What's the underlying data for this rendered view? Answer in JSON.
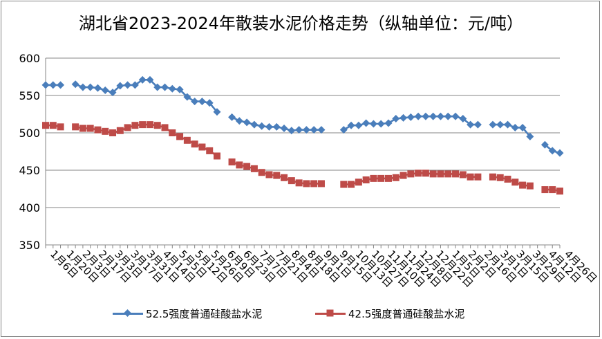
{
  "chart_data": {
    "type": "line",
    "title": "湖北省2023-2024年散装水泥价格走势（纵轴单位：元/吨）",
    "xlabel": "",
    "ylabel": "",
    "ylim": [
      350,
      600
    ],
    "yticks": [
      350,
      400,
      450,
      500,
      550,
      600
    ],
    "grid": "horizontal",
    "legend": "bottom",
    "x_tick_labels": [
      "1月6日",
      "1月20日",
      "2月3日",
      "2月17日",
      "3月3日",
      "3月17日",
      "3月31日",
      "4月14日",
      "5月5日",
      "5月12日",
      "5月26日",
      "6月9日",
      "6月23日",
      "7月7日",
      "7月21日",
      "8月4日",
      "8月18日",
      "9月1日",
      "9月15日",
      "10月13日",
      "10月27日",
      "11月10日",
      "11月24日",
      "12月8日",
      "12月22日",
      "1月5日",
      "2月2日",
      "2月16日",
      "3月1日",
      "3月15日",
      "3月29日",
      "4月12日",
      "4月26日"
    ],
    "series": [
      {
        "name": "52.5强度普通硅酸盐水泥",
        "color": "#4a7ebb",
        "marker": "diamond",
        "points": [
          [
            0,
            564
          ],
          [
            1,
            564
          ],
          [
            2,
            564
          ],
          [
            4,
            565
          ],
          [
            5,
            561
          ],
          [
            6,
            561
          ],
          [
            7,
            560
          ],
          [
            8,
            557
          ],
          [
            9,
            554
          ],
          [
            10,
            563
          ],
          [
            11,
            564
          ],
          [
            12,
            564
          ],
          [
            13,
            571
          ],
          [
            14,
            571
          ],
          [
            15,
            561
          ],
          [
            16,
            561
          ],
          [
            17,
            559
          ],
          [
            18,
            558
          ],
          [
            19,
            548
          ],
          [
            20,
            542
          ],
          [
            21,
            542
          ],
          [
            22,
            540
          ],
          [
            23,
            528
          ],
          [
            25,
            521
          ],
          [
            26,
            516
          ],
          [
            27,
            514
          ],
          [
            28,
            511
          ],
          [
            29,
            509
          ],
          [
            30,
            508
          ],
          [
            31,
            508
          ],
          [
            32,
            506
          ],
          [
            33,
            503
          ],
          [
            34,
            504
          ],
          [
            35,
            504
          ],
          [
            36,
            504
          ],
          [
            37,
            504
          ],
          [
            40,
            504
          ],
          [
            41,
            510
          ],
          [
            42,
            510
          ],
          [
            43,
            513
          ],
          [
            44,
            512
          ],
          [
            45,
            512
          ],
          [
            46,
            513
          ],
          [
            47,
            519
          ],
          [
            48,
            520
          ],
          [
            49,
            521
          ],
          [
            50,
            522
          ],
          [
            51,
            522
          ],
          [
            52,
            522
          ],
          [
            53,
            522
          ],
          [
            54,
            522
          ],
          [
            55,
            522
          ],
          [
            56,
            519
          ],
          [
            57,
            511
          ],
          [
            58,
            511
          ],
          [
            60,
            511
          ],
          [
            61,
            511
          ],
          [
            62,
            511
          ],
          [
            63,
            507
          ],
          [
            64,
            507
          ],
          [
            65,
            495
          ],
          [
            67,
            484
          ],
          [
            68,
            476
          ],
          [
            69,
            473
          ]
        ]
      },
      {
        "name": "42.5强度普通硅酸盐水泥",
        "color": "#be4b48",
        "marker": "square",
        "points": [
          [
            0,
            510
          ],
          [
            1,
            510
          ],
          [
            2,
            508
          ],
          [
            4,
            508
          ],
          [
            5,
            506
          ],
          [
            6,
            506
          ],
          [
            7,
            504
          ],
          [
            8,
            502
          ],
          [
            9,
            500
          ],
          [
            10,
            503
          ],
          [
            11,
            507
          ],
          [
            12,
            510
          ],
          [
            13,
            511
          ],
          [
            14,
            511
          ],
          [
            15,
            510
          ],
          [
            16,
            507
          ],
          [
            17,
            500
          ],
          [
            18,
            495
          ],
          [
            19,
            490
          ],
          [
            20,
            485
          ],
          [
            21,
            481
          ],
          [
            22,
            476
          ],
          [
            23,
            469
          ],
          [
            25,
            461
          ],
          [
            26,
            457
          ],
          [
            27,
            455
          ],
          [
            28,
            452
          ],
          [
            29,
            447
          ],
          [
            30,
            444
          ],
          [
            31,
            443
          ],
          [
            32,
            440
          ],
          [
            33,
            436
          ],
          [
            34,
            433
          ],
          [
            35,
            432
          ],
          [
            36,
            432
          ],
          [
            37,
            432
          ],
          [
            40,
            431
          ],
          [
            41,
            431
          ],
          [
            42,
            434
          ],
          [
            43,
            437
          ],
          [
            44,
            439
          ],
          [
            45,
            439
          ],
          [
            46,
            439
          ],
          [
            47,
            440
          ],
          [
            48,
            443
          ],
          [
            49,
            445
          ],
          [
            50,
            446
          ],
          [
            51,
            446
          ],
          [
            52,
            445
          ],
          [
            53,
            445
          ],
          [
            54,
            445
          ],
          [
            55,
            445
          ],
          [
            56,
            444
          ],
          [
            57,
            441
          ],
          [
            58,
            441
          ],
          [
            60,
            441
          ],
          [
            61,
            440
          ],
          [
            62,
            438
          ],
          [
            63,
            434
          ],
          [
            64,
            430
          ],
          [
            65,
            429
          ],
          [
            67,
            424
          ],
          [
            68,
            424
          ],
          [
            69,
            422
          ]
        ]
      }
    ]
  }
}
